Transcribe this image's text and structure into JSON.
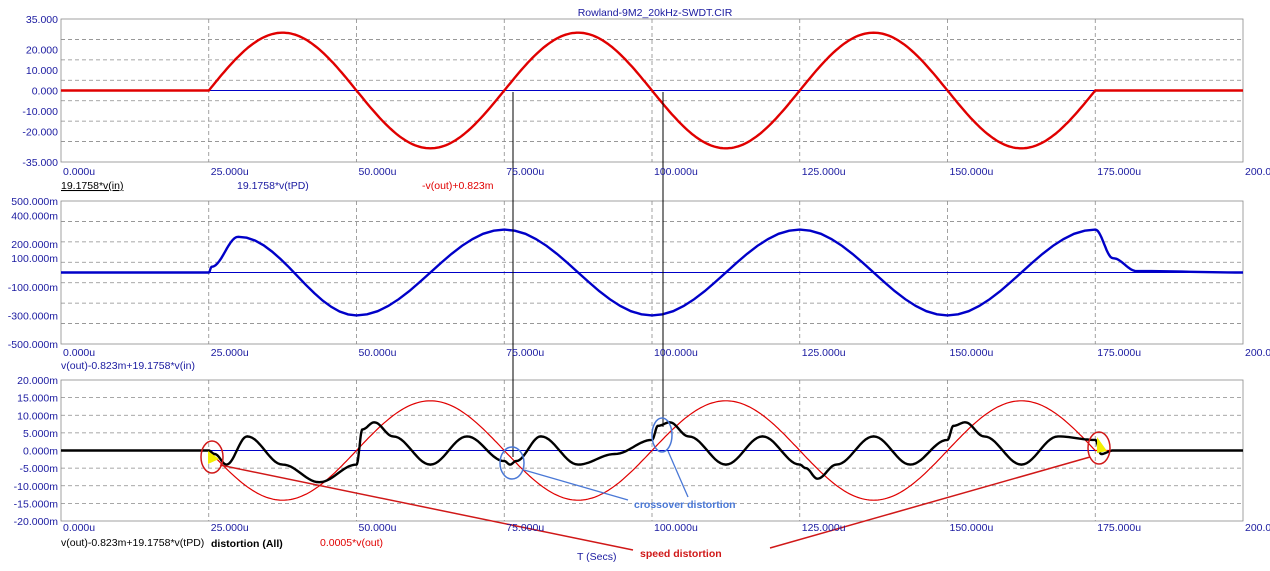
{
  "window_title": "Rowland-9M2_20kHz-SWDT.CIR",
  "x_axis": {
    "label": "T (Secs)",
    "tick_labels": [
      "0.000u",
      "25.000u",
      "50.000u",
      "75.000u",
      "100.000u",
      "125.000u",
      "150.000u",
      "175.000u",
      "200.000u"
    ],
    "range_us": [
      0,
      200
    ]
  },
  "colors": {
    "tick_text": "#1a1aa0",
    "red_trace": "#e00000",
    "blue_trace": "#0000c8",
    "black_trace": "#000000",
    "annotation_blue": "#4a78d6",
    "annotation_red": "#d01818",
    "highlight_yellow": "#f2ee00"
  },
  "panels": {
    "top": {
      "y_tick_labels": [
        "35.000",
        "20.000",
        "10.000",
        "0.000",
        "-10.000",
        "-20.000",
        "-35.000"
      ],
      "trace_labels": [
        "19.1758*v(in)",
        "19.1758*v(tPD)",
        "-v(out)+0.823m"
      ]
    },
    "middle": {
      "y_tick_labels": [
        "500.000m",
        "400.000m",
        "200.000m",
        "100.000m",
        "-100.000m",
        "-300.000m",
        "-500.000m"
      ],
      "trace_labels": [
        "v(out)-0.823m+19.1758*v(in)"
      ]
    },
    "bottom": {
      "y_tick_labels": [
        "20.000m",
        "15.000m",
        "10.000m",
        "5.000m",
        "0.000m",
        "-5.000m",
        "-10.000m",
        "-15.000m",
        "-20.000m"
      ],
      "trace_labels": [
        "v(out)-0.823m+19.1758*v(tPD)",
        "distortion (All)",
        "0.0005*v(out)"
      ]
    }
  },
  "annotations": {
    "crossover": "crossover distortion",
    "speed": "speed distortion"
  },
  "chart_data": [
    {
      "type": "line",
      "panel": "top",
      "y_range": [
        -35,
        35
      ],
      "series": [
        {
          "name": "19.1758*v(in)",
          "color": "#0000c8",
          "x_us": [
            0,
            200
          ],
          "y": [
            0,
            0
          ]
        },
        {
          "name": "-v(out)+0.823m",
          "color": "#e00000",
          "x_us": [
            0,
            25,
            37.5,
            50,
            62.5,
            75,
            87.5,
            100,
            112.5,
            125,
            137.5,
            150,
            162.5,
            175,
            180,
            200
          ],
          "y": [
            0,
            0,
            28.3,
            0,
            -28.3,
            0,
            28.3,
            0,
            -28.3,
            0,
            28.3,
            0,
            -28.3,
            -3,
            0,
            0
          ]
        }
      ]
    },
    {
      "type": "line",
      "panel": "middle",
      "y_range": [
        -0.5,
        0.5
      ],
      "series": [
        {
          "name": "v(out)-0.823m+19.1758*v(in)",
          "color": "#0000c8",
          "x_us": [
            0,
            25,
            25.5,
            30,
            50,
            75,
            100,
            125,
            150,
            175,
            178,
            182,
            200
          ],
          "y": [
            0.0,
            0.0,
            0.04,
            0.25,
            -0.3,
            0.3,
            -0.3,
            0.3,
            -0.3,
            0.3,
            0.1,
            0.01,
            0.0
          ]
        }
      ]
    },
    {
      "type": "line",
      "panel": "bottom",
      "y_range": [
        -0.02,
        0.02
      ],
      "series": [
        {
          "name": "0.0005*v(out)",
          "color": "#e00000",
          "x_us": [
            0,
            25,
            37.5,
            50,
            62.5,
            75,
            87.5,
            100,
            112.5,
            125,
            137.5,
            150,
            162.5,
            175,
            180,
            200
          ],
          "y": [
            0,
            0,
            -0.0141,
            0,
            0.0141,
            0,
            -0.0141,
            0,
            0.0141,
            0,
            -0.0141,
            0,
            0.0141,
            0.0015,
            0,
            0
          ]
        },
        {
          "name": "distortion (All)",
          "color": "#000000",
          "x_us": [
            0,
            25,
            26,
            28,
            31.5,
            37.5,
            43.7,
            50,
            51,
            53,
            56.2,
            62.5,
            68.7,
            75,
            76,
            77,
            81.2,
            87.5,
            93.7,
            100,
            101,
            103,
            106.2,
            112.5,
            118.7,
            125,
            126,
            128,
            131.2,
            137.5,
            143.7,
            150,
            151,
            153,
            156.2,
            162.5,
            168.7,
            175,
            176,
            178,
            200
          ],
          "y": [
            0,
            0,
            -0.001,
            -0.004,
            0.004,
            -0.004,
            -0.009,
            -0.004,
            0.006,
            0.008,
            0.004,
            -0.004,
            0.004,
            -0.003,
            -0.004,
            -0.003,
            0.004,
            -0.004,
            -0.001,
            0.003,
            0.007,
            0.008,
            0.004,
            -0.004,
            0.004,
            -0.004,
            -0.005,
            -0.008,
            -0.004,
            0.004,
            -0.004,
            0.003,
            0.007,
            0.008,
            0.004,
            -0.004,
            0.004,
            0.003,
            -0.001,
            0,
            0
          ]
        }
      ]
    }
  ]
}
